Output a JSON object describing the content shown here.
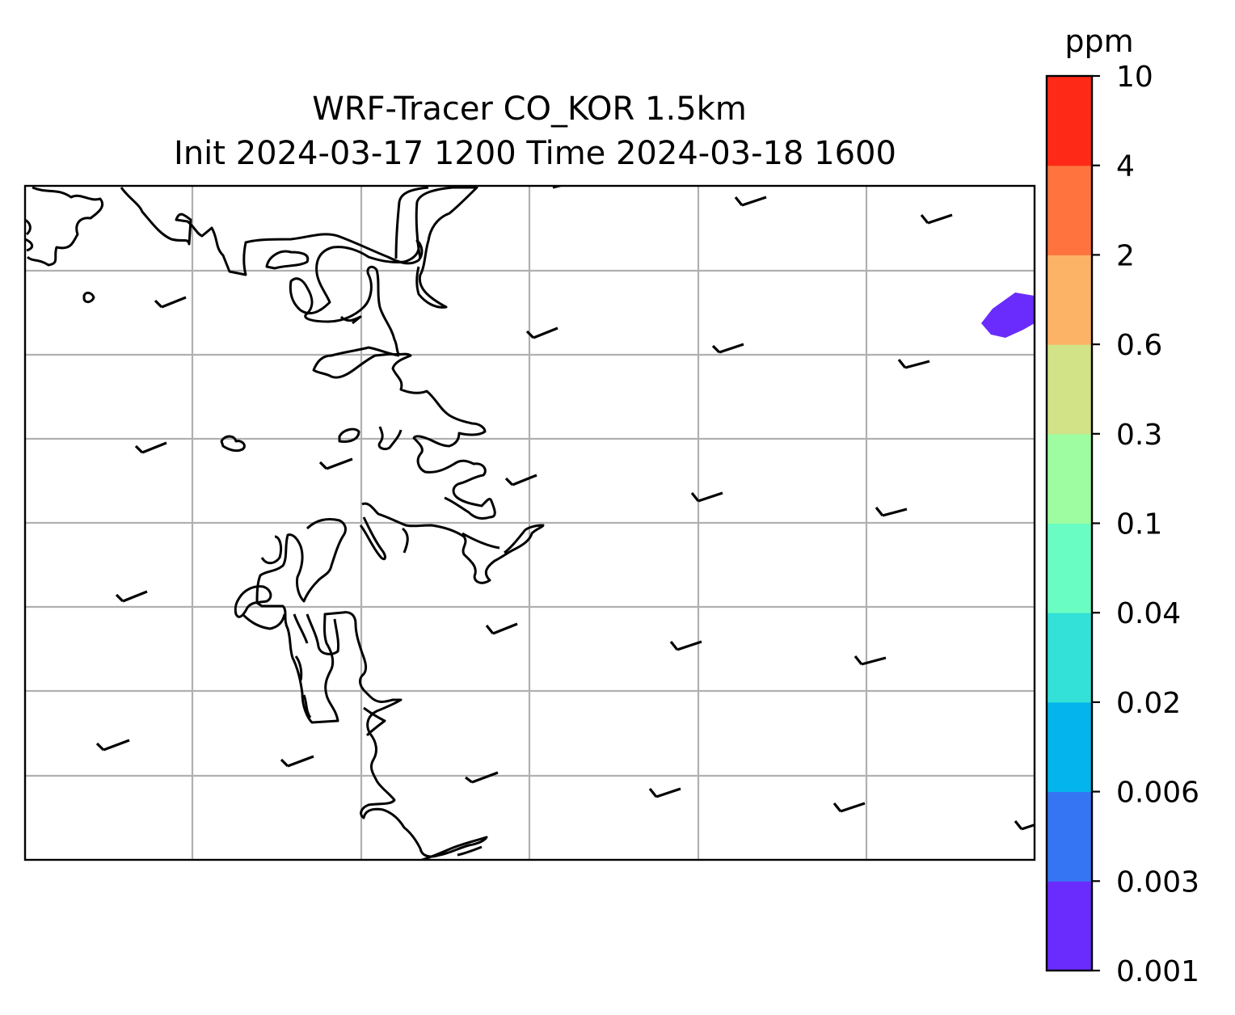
{
  "title": {
    "line1": "WRF-Tracer CO_KOR 1.5km",
    "line2": "Init 2024-03-17 1200 Time 2024-03-18 1600"
  },
  "colorbar": {
    "unit": "ppm",
    "levels": [
      "0.001",
      "0.003",
      "0.006",
      "0.02",
      "0.04",
      "0.1",
      "0.3",
      "0.6",
      "2",
      "4",
      "10"
    ],
    "colors": [
      "#6a2cfd",
      "#3575f4",
      "#04b4ec",
      "#33e1d8",
      "#6afdc3",
      "#9dfda0",
      "#d1e287",
      "#fdb365",
      "#fe733e",
      "#fe2a17"
    ]
  },
  "map": {
    "grid": true,
    "coastline_color": "#000000",
    "contour_patch_level": "0.001–0.003 ppm",
    "wind_barbs": "light westerly winds (short barbs) across domain"
  }
}
